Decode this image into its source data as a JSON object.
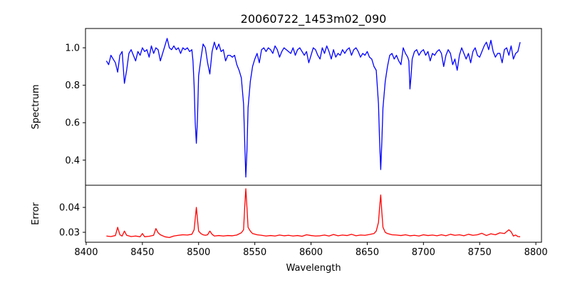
{
  "chart_data": [
    {
      "type": "line",
      "title": "20060722_1453m02_090",
      "xlabel": "",
      "ylabel": "Spectrum",
      "xlim": [
        8399.4,
        8805
      ],
      "ylim": [
        0.266,
        1.103
      ],
      "yticks": [
        "0.4",
        "0.6",
        "0.8",
        "1.0"
      ],
      "ytick_values": [
        0.4,
        0.6,
        0.8,
        1.0
      ],
      "color": "#0000ff",
      "points": [
        [
          8418,
          0.93
        ],
        [
          8420,
          0.91
        ],
        [
          8422,
          0.96
        ],
        [
          8424,
          0.94
        ],
        [
          8426,
          0.92
        ],
        [
          8428,
          0.87
        ],
        [
          8430,
          0.96
        ],
        [
          8432,
          0.98
        ],
        [
          8434,
          0.81
        ],
        [
          8436,
          0.88
        ],
        [
          8438,
          0.97
        ],
        [
          8440,
          0.99
        ],
        [
          8442,
          0.96
        ],
        [
          8444,
          0.93
        ],
        [
          8446,
          0.98
        ],
        [
          8448,
          0.96
        ],
        [
          8450,
          1.0
        ],
        [
          8452,
          0.98
        ],
        [
          8454,
          0.99
        ],
        [
          8456,
          0.95
        ],
        [
          8458,
          1.01
        ],
        [
          8460,
          0.97
        ],
        [
          8462,
          1.0
        ],
        [
          8464,
          0.99
        ],
        [
          8466,
          0.93
        ],
        [
          8468,
          0.97
        ],
        [
          8470,
          1.01
        ],
        [
          8472,
          1.05
        ],
        [
          8474,
          1.0
        ],
        [
          8476,
          0.99
        ],
        [
          8478,
          1.01
        ],
        [
          8480,
          0.99
        ],
        [
          8482,
          1.0
        ],
        [
          8484,
          0.97
        ],
        [
          8486,
          1.0
        ],
        [
          8488,
          0.99
        ],
        [
          8490,
          1.0
        ],
        [
          8492,
          0.98
        ],
        [
          8494,
          0.99
        ],
        [
          8495,
          0.93
        ],
        [
          8496,
          0.8
        ],
        [
          8497,
          0.6
        ],
        [
          8498,
          0.49
        ],
        [
          8499,
          0.62
        ],
        [
          8500,
          0.85
        ],
        [
          8502,
          0.94
        ],
        [
          8504,
          1.02
        ],
        [
          8506,
          1.0
        ],
        [
          8508,
          0.92
        ],
        [
          8510,
          0.86
        ],
        [
          8512,
          0.98
        ],
        [
          8514,
          1.03
        ],
        [
          8516,
          0.99
        ],
        [
          8518,
          1.02
        ],
        [
          8520,
          0.98
        ],
        [
          8522,
          0.99
        ],
        [
          8524,
          0.93
        ],
        [
          8526,
          0.96
        ],
        [
          8528,
          0.96
        ],
        [
          8530,
          0.95
        ],
        [
          8532,
          0.96
        ],
        [
          8534,
          0.91
        ],
        [
          8536,
          0.88
        ],
        [
          8538,
          0.84
        ],
        [
          8540,
          0.7
        ],
        [
          8541,
          0.5
        ],
        [
          8542,
          0.31
        ],
        [
          8543,
          0.45
        ],
        [
          8544,
          0.68
        ],
        [
          8546,
          0.82
        ],
        [
          8548,
          0.9
        ],
        [
          8550,
          0.94
        ],
        [
          8552,
          0.97
        ],
        [
          8554,
          0.92
        ],
        [
          8556,
          0.99
        ],
        [
          8558,
          1.0
        ],
        [
          8560,
          0.98
        ],
        [
          8562,
          1.0
        ],
        [
          8564,
          0.99
        ],
        [
          8566,
          0.97
        ],
        [
          8568,
          1.01
        ],
        [
          8570,
          0.99
        ],
        [
          8572,
          0.95
        ],
        [
          8574,
          0.98
        ],
        [
          8576,
          1.0
        ],
        [
          8578,
          0.99
        ],
        [
          8580,
          0.98
        ],
        [
          8582,
          0.97
        ],
        [
          8584,
          1.0
        ],
        [
          8586,
          0.96
        ],
        [
          8588,
          0.99
        ],
        [
          8590,
          1.0
        ],
        [
          8592,
          0.98
        ],
        [
          8594,
          0.96
        ],
        [
          8596,
          0.98
        ],
        [
          8598,
          0.92
        ],
        [
          8600,
          0.96
        ],
        [
          8602,
          1.0
        ],
        [
          8604,
          0.99
        ],
        [
          8606,
          0.96
        ],
        [
          8608,
          0.94
        ],
        [
          8610,
          1.0
        ],
        [
          8612,
          0.97
        ],
        [
          8614,
          1.01
        ],
        [
          8616,
          0.98
        ],
        [
          8618,
          0.94
        ],
        [
          8620,
          0.99
        ],
        [
          8622,
          0.95
        ],
        [
          8624,
          0.97
        ],
        [
          8626,
          0.96
        ],
        [
          8628,
          0.99
        ],
        [
          8630,
          0.97
        ],
        [
          8632,
          0.99
        ],
        [
          8634,
          1.0
        ],
        [
          8636,
          0.96
        ],
        [
          8638,
          0.99
        ],
        [
          8640,
          1.0
        ],
        [
          8642,
          0.98
        ],
        [
          8644,
          0.95
        ],
        [
          8646,
          0.97
        ],
        [
          8648,
          0.96
        ],
        [
          8650,
          0.98
        ],
        [
          8652,
          0.95
        ],
        [
          8654,
          0.94
        ],
        [
          8656,
          0.9
        ],
        [
          8658,
          0.88
        ],
        [
          8660,
          0.7
        ],
        [
          8661,
          0.5
        ],
        [
          8662,
          0.35
        ],
        [
          8663,
          0.5
        ],
        [
          8664,
          0.68
        ],
        [
          8666,
          0.82
        ],
        [
          8668,
          0.9
        ],
        [
          8670,
          0.96
        ],
        [
          8672,
          0.97
        ],
        [
          8674,
          0.94
        ],
        [
          8676,
          0.96
        ],
        [
          8678,
          0.93
        ],
        [
          8680,
          0.91
        ],
        [
          8682,
          1.0
        ],
        [
          8684,
          0.97
        ],
        [
          8686,
          0.95
        ],
        [
          8687,
          0.93
        ],
        [
          8688,
          0.78
        ],
        [
          8689,
          0.85
        ],
        [
          8690,
          0.94
        ],
        [
          8692,
          0.98
        ],
        [
          8694,
          0.99
        ],
        [
          8696,
          0.96
        ],
        [
          8698,
          0.98
        ],
        [
          8700,
          0.99
        ],
        [
          8702,
          0.96
        ],
        [
          8704,
          0.98
        ],
        [
          8706,
          0.93
        ],
        [
          8708,
          0.97
        ],
        [
          8710,
          0.96
        ],
        [
          8712,
          0.98
        ],
        [
          8714,
          0.99
        ],
        [
          8716,
          0.97
        ],
        [
          8718,
          0.9
        ],
        [
          8720,
          0.96
        ],
        [
          8722,
          0.99
        ],
        [
          8724,
          0.97
        ],
        [
          8726,
          0.91
        ],
        [
          8728,
          0.94
        ],
        [
          8730,
          0.88
        ],
        [
          8732,
          0.96
        ],
        [
          8734,
          1.0
        ],
        [
          8736,
          0.97
        ],
        [
          8738,
          0.94
        ],
        [
          8740,
          0.97
        ],
        [
          8742,
          0.92
        ],
        [
          8744,
          0.98
        ],
        [
          8746,
          1.0
        ],
        [
          8748,
          0.96
        ],
        [
          8750,
          0.95
        ],
        [
          8752,
          0.98
        ],
        [
          8754,
          1.01
        ],
        [
          8756,
          1.03
        ],
        [
          8758,
          0.99
        ],
        [
          8760,
          1.04
        ],
        [
          8762,
          0.98
        ],
        [
          8764,
          0.95
        ],
        [
          8766,
          0.97
        ],
        [
          8768,
          0.97
        ],
        [
          8770,
          0.92
        ],
        [
          8772,
          0.99
        ],
        [
          8774,
          1.0
        ],
        [
          8776,
          0.96
        ],
        [
          8778,
          1.01
        ],
        [
          8780,
          0.94
        ],
        [
          8782,
          0.97
        ],
        [
          8784,
          0.98
        ],
        [
          8786,
          1.03
        ]
      ]
    },
    {
      "type": "line",
      "title": "",
      "xlabel": "Wavelength",
      "ylabel": "Error",
      "xlim": [
        8399.4,
        8805
      ],
      "ylim": [
        0.026,
        0.0489
      ],
      "yticks": [
        "0.03",
        "0.04"
      ],
      "ytick_values": [
        0.03,
        0.04
      ],
      "xticks": [
        "8400",
        "8450",
        "8500",
        "8550",
        "8600",
        "8650",
        "8700",
        "8750",
        "8800"
      ],
      "xtick_values": [
        8400,
        8450,
        8500,
        8550,
        8600,
        8650,
        8700,
        8750,
        8800
      ],
      "color": "#ff0000",
      "points": [
        [
          8418,
          0.0285
        ],
        [
          8422,
          0.0283
        ],
        [
          8426,
          0.0287
        ],
        [
          8428,
          0.032
        ],
        [
          8430,
          0.029
        ],
        [
          8432,
          0.0285
        ],
        [
          8434,
          0.0305
        ],
        [
          8436,
          0.0288
        ],
        [
          8440,
          0.0283
        ],
        [
          8444,
          0.0285
        ],
        [
          8448,
          0.0282
        ],
        [
          8450,
          0.0295
        ],
        [
          8452,
          0.0282
        ],
        [
          8456,
          0.0284
        ],
        [
          8460,
          0.0288
        ],
        [
          8462,
          0.0315
        ],
        [
          8464,
          0.0298
        ],
        [
          8466,
          0.029
        ],
        [
          8470,
          0.0282
        ],
        [
          8474,
          0.0279
        ],
        [
          8478,
          0.0285
        ],
        [
          8482,
          0.0288
        ],
        [
          8486,
          0.029
        ],
        [
          8490,
          0.0289
        ],
        [
          8494,
          0.0292
        ],
        [
          8496,
          0.031
        ],
        [
          8498,
          0.04
        ],
        [
          8500,
          0.0305
        ],
        [
          8502,
          0.0295
        ],
        [
          8504,
          0.029
        ],
        [
          8506,
          0.0288
        ],
        [
          8508,
          0.029
        ],
        [
          8510,
          0.0305
        ],
        [
          8512,
          0.0292
        ],
        [
          8514,
          0.0285
        ],
        [
          8518,
          0.0287
        ],
        [
          8522,
          0.0285
        ],
        [
          8526,
          0.0287
        ],
        [
          8530,
          0.0286
        ],
        [
          8534,
          0.0289
        ],
        [
          8538,
          0.0298
        ],
        [
          8540,
          0.031
        ],
        [
          8541,
          0.04
        ],
        [
          8542,
          0.0475
        ],
        [
          8543,
          0.04
        ],
        [
          8544,
          0.032
        ],
        [
          8546,
          0.0305
        ],
        [
          8548,
          0.0295
        ],
        [
          8552,
          0.029
        ],
        [
          8556,
          0.0288
        ],
        [
          8560,
          0.0285
        ],
        [
          8564,
          0.0287
        ],
        [
          8568,
          0.0285
        ],
        [
          8572,
          0.0289
        ],
        [
          8576,
          0.0286
        ],
        [
          8580,
          0.0288
        ],
        [
          8584,
          0.0285
        ],
        [
          8588,
          0.0287
        ],
        [
          8592,
          0.0284
        ],
        [
          8596,
          0.029
        ],
        [
          8600,
          0.0287
        ],
        [
          8604,
          0.0285
        ],
        [
          8608,
          0.0286
        ],
        [
          8612,
          0.0289
        ],
        [
          8616,
          0.0285
        ],
        [
          8620,
          0.0291
        ],
        [
          8624,
          0.0286
        ],
        [
          8628,
          0.0289
        ],
        [
          8632,
          0.0287
        ],
        [
          8636,
          0.0292
        ],
        [
          8640,
          0.0286
        ],
        [
          8644,
          0.0289
        ],
        [
          8648,
          0.0288
        ],
        [
          8652,
          0.0291
        ],
        [
          8656,
          0.0295
        ],
        [
          8658,
          0.0305
        ],
        [
          8660,
          0.034
        ],
        [
          8661,
          0.04
        ],
        [
          8662,
          0.045
        ],
        [
          8663,
          0.038
        ],
        [
          8664,
          0.032
        ],
        [
          8666,
          0.03
        ],
        [
          8668,
          0.0295
        ],
        [
          8672,
          0.029
        ],
        [
          8676,
          0.0289
        ],
        [
          8680,
          0.0287
        ],
        [
          8684,
          0.029
        ],
        [
          8688,
          0.0286
        ],
        [
          8692,
          0.0288
        ],
        [
          8696,
          0.0285
        ],
        [
          8700,
          0.029
        ],
        [
          8704,
          0.0287
        ],
        [
          8708,
          0.0289
        ],
        [
          8712,
          0.0286
        ],
        [
          8716,
          0.029
        ],
        [
          8720,
          0.0286
        ],
        [
          8724,
          0.0292
        ],
        [
          8728,
          0.0288
        ],
        [
          8732,
          0.029
        ],
        [
          8736,
          0.0286
        ],
        [
          8740,
          0.0292
        ],
        [
          8744,
          0.0288
        ],
        [
          8748,
          0.029
        ],
        [
          8752,
          0.0296
        ],
        [
          8756,
          0.0287
        ],
        [
          8760,
          0.0294
        ],
        [
          8764,
          0.029
        ],
        [
          8768,
          0.0298
        ],
        [
          8772,
          0.0295
        ],
        [
          8776,
          0.031
        ],
        [
          8778,
          0.0302
        ],
        [
          8780,
          0.0285
        ],
        [
          8782,
          0.0289
        ],
        [
          8784,
          0.0283
        ],
        [
          8786,
          0.0282
        ]
      ]
    }
  ]
}
